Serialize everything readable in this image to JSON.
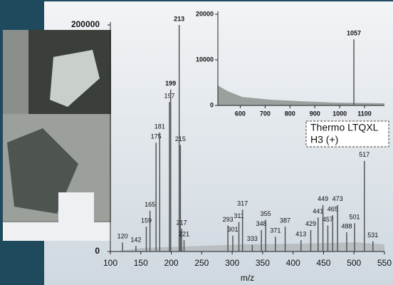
{
  "chart_data": [
    {
      "type": "bar",
      "x_label": "m/z",
      "x": [
        120,
        142,
        159,
        165,
        175,
        181,
        197,
        199,
        213,
        215,
        217,
        221,
        293,
        301,
        311,
        317,
        333,
        348,
        355,
        371,
        387,
        413,
        429,
        441,
        449,
        457,
        465,
        473,
        488,
        501,
        517,
        531
      ],
      "values": [
        8000,
        5000,
        22000,
        36000,
        96000,
        105000,
        132000,
        143000,
        200000,
        94000,
        20000,
        10000,
        23000,
        14000,
        26000,
        37000,
        6000,
        19000,
        28000,
        13000,
        22000,
        10000,
        19000,
        30000,
        41000,
        23000,
        32000,
        41000,
        17000,
        25000,
        80000,
        9000
      ],
      "color": "#555555",
      "xlim": [
        100,
        550
      ],
      "xticks": [
        100,
        150,
        200,
        250,
        300,
        350,
        400,
        450,
        500,
        550
      ],
      "ylim": [
        0,
        200000
      ],
      "yticks": [
        0,
        200000
      ]
    },
    {
      "type": "bar",
      "x": [
        1057
      ],
      "values": [
        14500
      ],
      "color": "#555555",
      "xlim": [
        510,
        1180
      ],
      "xticks": [
        600,
        700,
        800,
        900,
        1000,
        1100
      ],
      "ylim": [
        0,
        20000
      ],
      "yticks": [
        0,
        10000,
        20000
      ],
      "annotations": [
        "Thermo LTQXL",
        "H3 (+)"
      ]
    }
  ]
}
